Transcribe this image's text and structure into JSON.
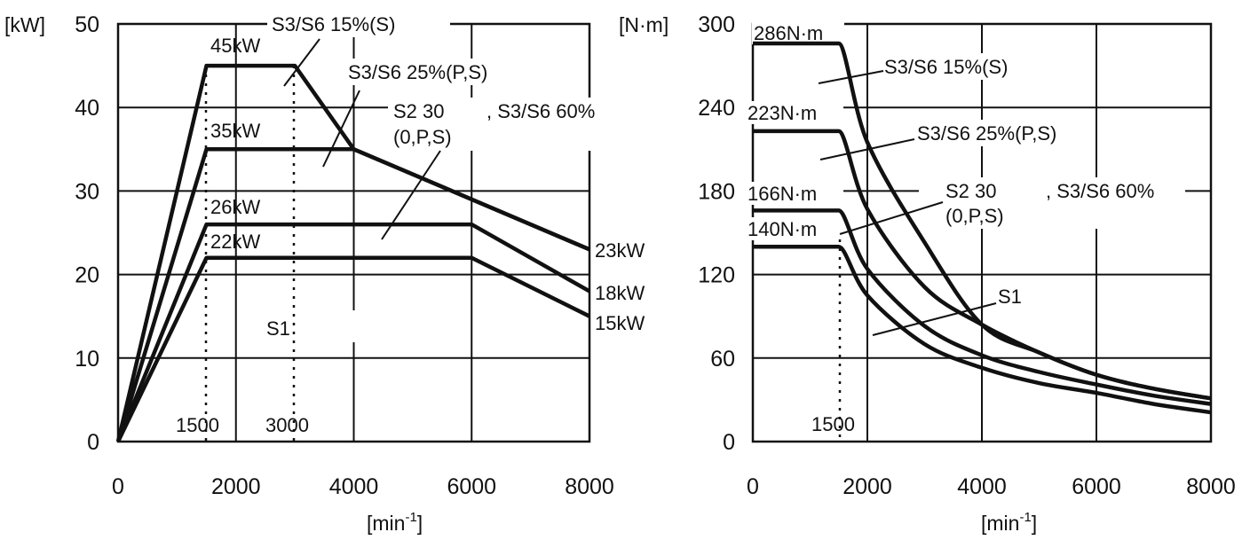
{
  "chart_data": [
    {
      "type": "line",
      "title": "",
      "xlabel": "[min-1]",
      "xlabel_base": "[min",
      "xlabel_sup": "-1",
      "xlabel_close": "]",
      "ylabel": "[kW]",
      "xlim": [
        0,
        8000
      ],
      "ylim": [
        0,
        50
      ],
      "x_ticks": [
        "0",
        "2000",
        "4000",
        "6000",
        "8000"
      ],
      "y_ticks": [
        "0",
        "10",
        "20",
        "30",
        "40",
        "50"
      ],
      "grid": true,
      "series": [
        {
          "name": "S3/S6 15%(S)",
          "points": [
            [
              0,
              0
            ],
            [
              1500,
              45
            ],
            [
              3000,
              45
            ],
            [
              4000,
              35
            ],
            [
              8000,
              23
            ]
          ]
        },
        {
          "name": "S3/S6 25%(P,S)",
          "points": [
            [
              0,
              0
            ],
            [
              1500,
              35
            ],
            [
              4000,
              35
            ],
            [
              8000,
              23
            ]
          ]
        },
        {
          "name": "S2 30 , S3/S6 60% (0,P,S)",
          "points": [
            [
              0,
              0
            ],
            [
              1500,
              26
            ],
            [
              6000,
              26
            ],
            [
              8000,
              18
            ]
          ]
        },
        {
          "name": "S1",
          "points": [
            [
              0,
              0
            ],
            [
              1500,
              22
            ],
            [
              6000,
              22
            ],
            [
              8000,
              15
            ]
          ]
        }
      ],
      "annotations": {
        "peak_45": "45kW",
        "peak_35": "35kW",
        "peak_26": "26kW",
        "peak_22": "22kW",
        "end_23": "23kW",
        "end_18": "18kW",
        "end_15": "15kW",
        "speed_1500": "1500",
        "speed_3000": "3000",
        "s3_15": "S3/S6 15%(S)",
        "s3_25": "S3/S6 25%(P,S)",
        "s2_30": "S2 30",
        "s2_60": ", S3/S6 60%",
        "s2_sub": "(0,P,S)",
        "s1": "S1"
      }
    },
    {
      "type": "line",
      "title": "",
      "xlabel": "[min-1]",
      "xlabel_base": "[min",
      "xlabel_sup": "-1",
      "xlabel_close": "]",
      "ylabel": "[N·m]",
      "xlim": [
        0,
        8000
      ],
      "ylim": [
        0,
        300
      ],
      "x_ticks": [
        "0",
        "2000",
        "4000",
        "6000",
        "8000"
      ],
      "y_ticks": [
        "0",
        "60",
        "120",
        "180",
        "240",
        "300"
      ],
      "grid": true,
      "series": [
        {
          "name": "S3/S6 15%(S)",
          "points": [
            [
              0,
              286
            ],
            [
              1500,
              286
            ],
            [
              2000,
              215
            ],
            [
              3000,
              143
            ],
            [
              4000,
              84
            ],
            [
              5000,
              64
            ],
            [
              6000,
              48
            ],
            [
              7000,
              38
            ],
            [
              8000,
              31
            ]
          ]
        },
        {
          "name": "S3/S6 25%(P,S)",
          "points": [
            [
              0,
              223
            ],
            [
              1500,
              223
            ],
            [
              2000,
              167
            ],
            [
              3000,
              111
            ],
            [
              4000,
              84
            ],
            [
              5000,
              64
            ],
            [
              6000,
              48
            ],
            [
              7000,
              38
            ],
            [
              8000,
              31
            ]
          ]
        },
        {
          "name": "S2 30 , S3/S6 60% (0,P,S)",
          "points": [
            [
              0,
              166
            ],
            [
              1500,
              166
            ],
            [
              2000,
              124
            ],
            [
              3000,
              83
            ],
            [
              4000,
              62
            ],
            [
              5000,
              50
            ],
            [
              6000,
              41
            ],
            [
              7000,
              33
            ],
            [
              8000,
              27
            ]
          ]
        },
        {
          "name": "S1",
          "points": [
            [
              0,
              140
            ],
            [
              1500,
              140
            ],
            [
              2000,
              105
            ],
            [
              3000,
              70
            ],
            [
              4000,
              53
            ],
            [
              5000,
              42
            ],
            [
              6000,
              35
            ],
            [
              7000,
              27
            ],
            [
              8000,
              21
            ]
          ]
        }
      ],
      "annotations": {
        "t_286": "286N·m",
        "t_223": "223N·m",
        "t_166": "166N·m",
        "t_140": "140N·m",
        "speed_1500": "1500",
        "s3_15": "S3/S6 15%(S)",
        "s3_25": "S3/S6 25%(P,S)",
        "s2_30": "S2 30",
        "s2_60": ", S3/S6 60%",
        "s2_sub": "(0,P,S)",
        "s1": "S1"
      }
    }
  ]
}
